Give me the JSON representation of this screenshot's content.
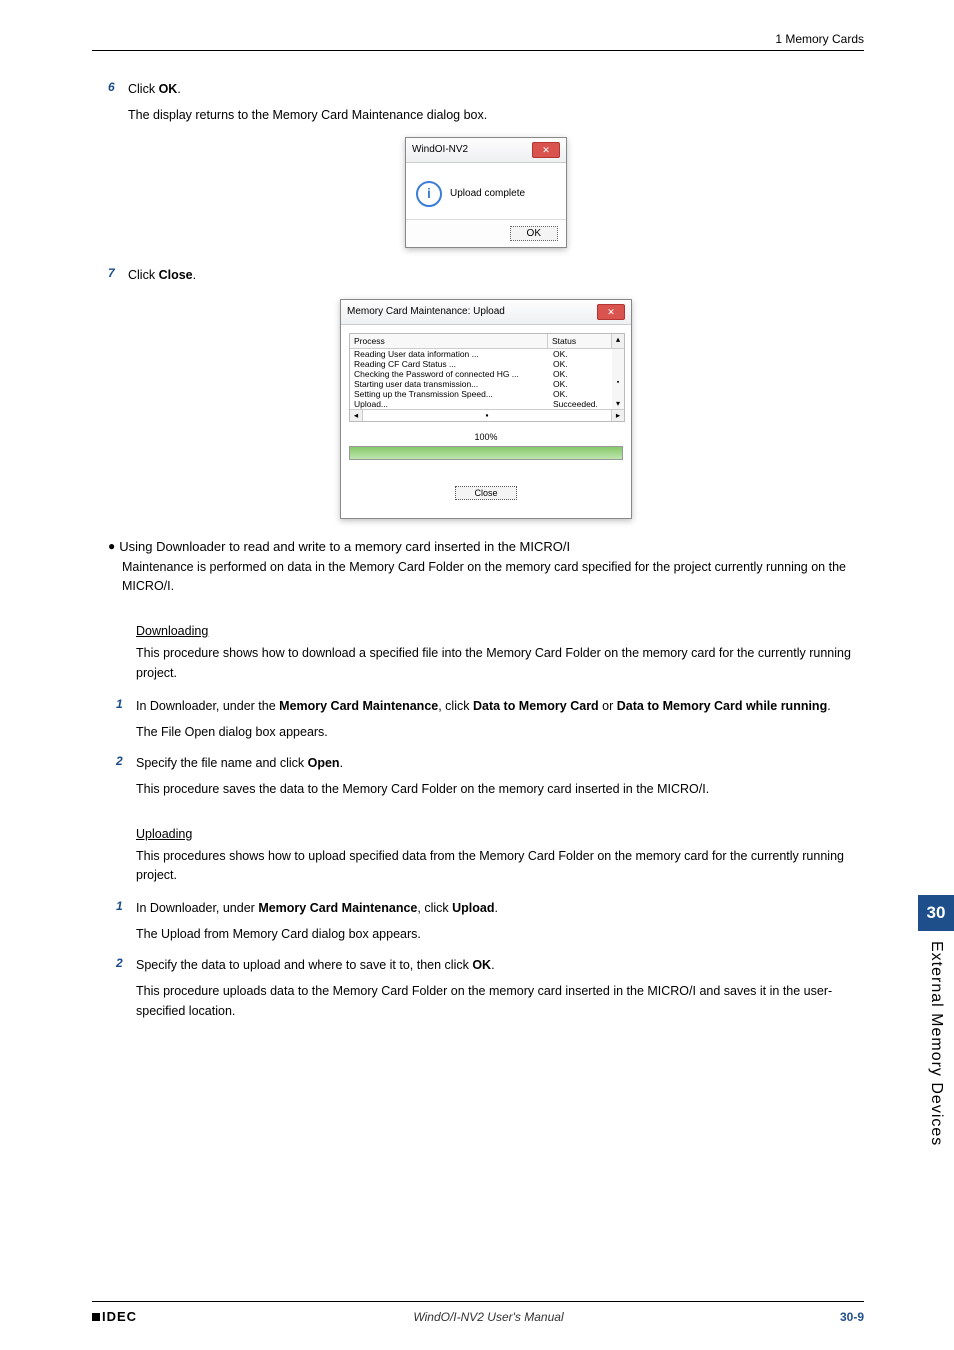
{
  "header": {
    "breadcrumb": "1 Memory Cards"
  },
  "steps_a": {
    "s6": {
      "num": "6",
      "text_1": "Click ",
      "bold_1": "OK",
      "text_2": ".",
      "desc": "The display returns to the Memory Card Maintenance dialog box."
    },
    "s7": {
      "num": "7",
      "text_1": "Click ",
      "bold_1": "Close",
      "text_2": "."
    }
  },
  "dialog1": {
    "title": "WindOI-NV2",
    "message": "Upload complete",
    "info_glyph": "i",
    "ok": "OK",
    "close_x": "✕"
  },
  "dialog2": {
    "title": "Memory Card Maintenance: Upload",
    "close_x": "✕",
    "head_process": "Process",
    "head_status": "Status",
    "scroll_up": "▴",
    "scroll_down": "▾",
    "scroll_thumb": "▪",
    "rows": [
      {
        "p": "Reading User data information ...",
        "s": "OK."
      },
      {
        "p": "Reading CF Card Status ...",
        "s": "OK."
      },
      {
        "p": "Checking the Password of connected HG ...",
        "s": "OK."
      },
      {
        "p": "Starting user data transmission...",
        "s": "OK."
      },
      {
        "p": "Setting up the Transmission Speed...",
        "s": "OK."
      },
      {
        "p": "Upload...",
        "s": "Succeeded."
      }
    ],
    "scroll_left": "◂",
    "scroll_mid": "▪",
    "scroll_right": "▸",
    "percent": "100%",
    "close": "Close"
  },
  "section": {
    "title": "Using Downloader to read and write to a memory card inserted in the MICRO/I",
    "body": "Maintenance is performed on data in the Memory Card Folder on the memory card specified for the project currently running on the MICRO/I."
  },
  "downloading": {
    "heading": "Downloading",
    "intro": "This procedure shows how to download a specified file into the Memory Card Folder on the memory card for the currently running project.",
    "s1": {
      "num": "1",
      "t1": "In Downloader, under the ",
      "b1": "Memory Card Maintenance",
      "t2": ", click ",
      "b2": "Data to Memory Card",
      "t3": " or ",
      "b3": "Data to Memory Card while running",
      "t4": ".",
      "desc": "The File Open dialog box appears."
    },
    "s2": {
      "num": "2",
      "t1": "Specify the file name and click ",
      "b1": "Open",
      "t2": ".",
      "desc": "This procedure saves the data to the Memory Card Folder on the memory card inserted in the MICRO/I."
    }
  },
  "uploading": {
    "heading": "Uploading",
    "intro": "This procedures shows how to upload specified data from the Memory Card Folder on the memory card for the currently running project.",
    "s1": {
      "num": "1",
      "t1": "In Downloader, under ",
      "b1": "Memory Card Maintenance",
      "t2": ", click ",
      "b2": "Upload",
      "t3": ".",
      "desc": "The Upload from Memory Card dialog box appears."
    },
    "s2": {
      "num": "2",
      "t1": "Specify the data to upload and where to save it to, then click ",
      "b1": "OK",
      "t2": ".",
      "desc": "This procedure uploads data to the Memory Card Folder on the memory card inserted in the MICRO/I and saves it in the user-specified location."
    }
  },
  "side": {
    "chapter": "30",
    "label": "External Memory Devices"
  },
  "footer": {
    "brand": "IDEC",
    "center": "WindO/I-NV2 User's Manual",
    "page": "30-9"
  }
}
